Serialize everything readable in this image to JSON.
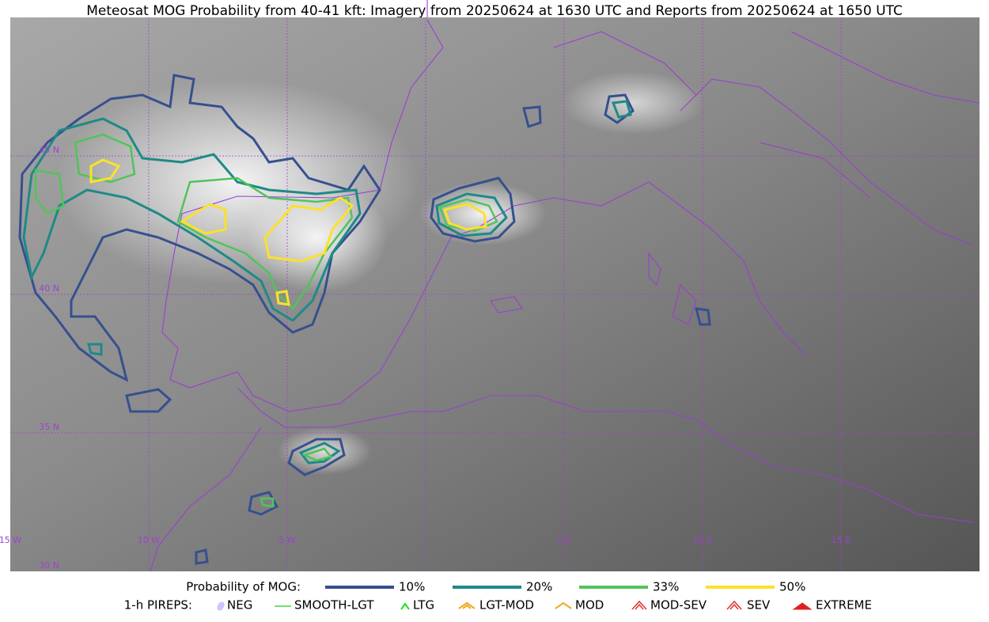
{
  "header": {
    "title": "Meteosat MOG Probability from 40-41 kft: Imagery from 20250624 at 1630 UTC and Reports from 20250624 at 1650 UTC"
  },
  "map": {
    "lat_labels": [
      "45 N",
      "40 N",
      "35 N",
      "30 N"
    ],
    "lon_labels": [
      "15 W",
      "10 W",
      "5 W",
      "5 E",
      "10 E",
      "15 E"
    ]
  },
  "legend": {
    "probability": {
      "title": "Probability of MOG:",
      "items": [
        "10%",
        "20%",
        "33%",
        "50%"
      ]
    },
    "pireps": {
      "title": "1-h PIREPS:",
      "items": [
        "NEG",
        "SMOOTH-LGT",
        "LTG",
        "LGT-MOD",
        "MOD",
        "MOD-SEV",
        "SEV",
        "EXTREME"
      ]
    }
  }
}
